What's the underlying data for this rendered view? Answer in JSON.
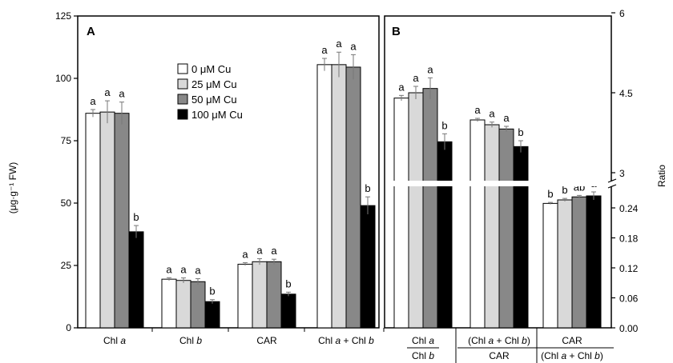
{
  "colors": {
    "0 µM Cu": "#ffffff",
    "25 µM Cu": "#d9d9d9",
    "50 µM Cu": "#888888",
    "100 µM Cu": "#000000"
  },
  "chart_data": [
    {
      "panel": "A",
      "type": "bar",
      "ylabel": "(μg·g⁻¹ FW)",
      "ylim": [
        0,
        125
      ],
      "yticks": [
        0,
        25,
        50,
        75,
        100,
        125
      ],
      "categories": [
        "Chl a",
        "Chl b",
        "CAR",
        "Chl a + Chl b"
      ],
      "legend": {
        "placement": "top-center",
        "entries": [
          "0 μM Cu",
          "25 μM Cu",
          "50 μM Cu",
          "100 μM Cu"
        ]
      },
      "series": [
        {
          "name": "0 μM Cu",
          "color": "#ffffff",
          "values": [
            86,
            19.5,
            25.5,
            105.5
          ],
          "errors": [
            1.5,
            0.6,
            0.6,
            2.5
          ],
          "letters": [
            "a",
            "a",
            "a",
            "a"
          ]
        },
        {
          "name": "25 μM Cu",
          "color": "#d9d9d9",
          "values": [
            86.5,
            19,
            26.5,
            105.5
          ],
          "errors": [
            4.5,
            1.0,
            1.2,
            5.0
          ],
          "letters": [
            "a",
            "a",
            "a",
            "a"
          ]
        },
        {
          "name": "50 μM Cu",
          "color": "#888888",
          "values": [
            86,
            18.5,
            26.5,
            104.5
          ],
          "errors": [
            4.5,
            1.2,
            1.0,
            5.0
          ],
          "letters": [
            "a",
            "a",
            "a",
            "a"
          ]
        },
        {
          "name": "100 μM Cu",
          "color": "#000000",
          "values": [
            38.5,
            10.5,
            13.5,
            49
          ],
          "errors": [
            2.5,
            0.8,
            0.8,
            3.5
          ],
          "letters": [
            "b",
            "b",
            "b",
            "b"
          ]
        }
      ]
    },
    {
      "panel": "B",
      "type": "bar",
      "ylabel": "Ratio",
      "axis_break": true,
      "upper_yticks": [
        3,
        4.5,
        6
      ],
      "lower_ylim": [
        0,
        0.27
      ],
      "lower_yticks": [
        "0.00",
        "0.06",
        "0.12",
        "0.18",
        "0.24"
      ],
      "categories": [
        {
          "num": "Chl a",
          "den": "Chl b"
        },
        {
          "num": "(Chl a + Chl b)",
          "den": "CAR"
        },
        {
          "num": "CAR",
          "den": "(Chl a + Chl b)"
        }
      ],
      "series": [
        {
          "name": "0 μM Cu",
          "color": "#ffffff",
          "values": [
            4.4,
            3.99,
            0.249
          ],
          "errors": [
            0.05,
            0.03,
            0.002
          ],
          "letters": [
            "a",
            "a",
            "b"
          ]
        },
        {
          "name": "25 μM Cu",
          "color": "#d9d9d9",
          "values": [
            4.5,
            3.9,
            0.256
          ],
          "errors": [
            0.12,
            0.05,
            0.003
          ],
          "letters": [
            "a",
            "a",
            "b"
          ]
        },
        {
          "name": "50 μM Cu",
          "color": "#888888",
          "values": [
            4.58,
            3.82,
            0.262
          ],
          "errors": [
            0.2,
            0.05,
            0.003
          ],
          "letters": [
            "a",
            "a",
            "ab"
          ]
        },
        {
          "name": "100 μM Cu",
          "color": "#000000",
          "values": [
            3.58,
            3.49,
            0.264
          ],
          "errors": [
            0.15,
            0.11,
            0.008
          ],
          "letters": [
            "b",
            "b",
            "a"
          ]
        }
      ]
    }
  ]
}
